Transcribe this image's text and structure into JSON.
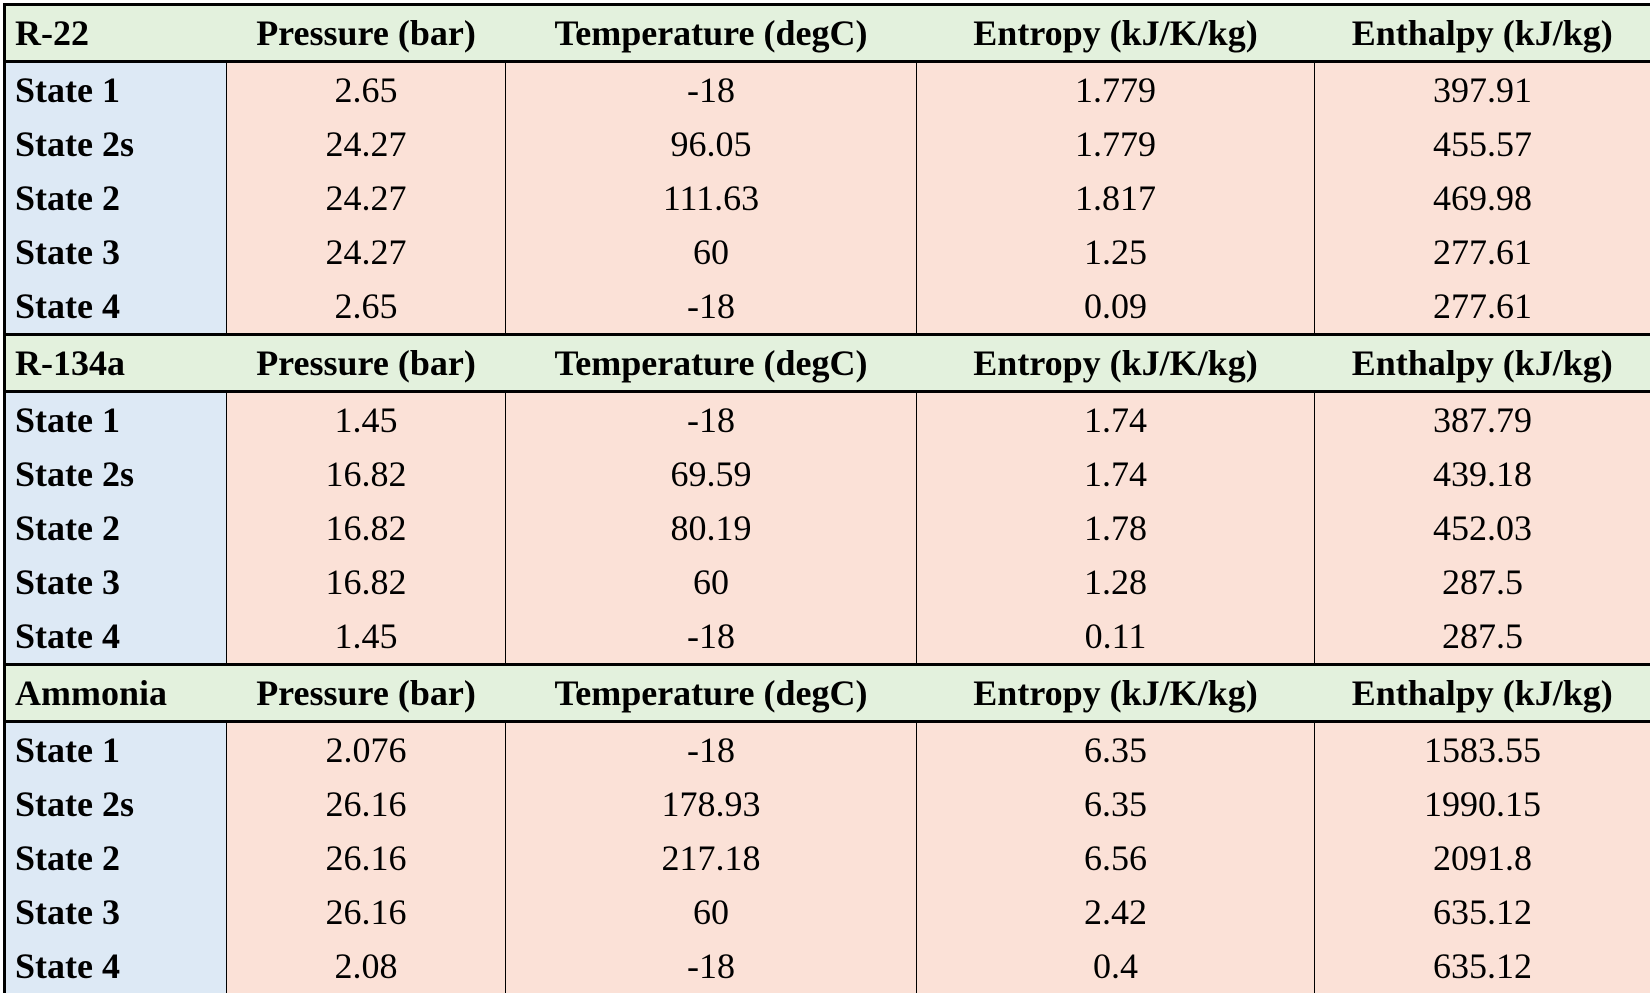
{
  "columns": [
    "Pressure (bar)",
    "Temperature (degC)",
    "Entropy (kJ/K/kg)",
    "Enthalpy (kJ/kg)"
  ],
  "sections": [
    {
      "name": "R-22",
      "rows": [
        {
          "state": "State 1",
          "values": [
            "2.65",
            "-18",
            "1.779",
            "397.91"
          ]
        },
        {
          "state": "State 2s",
          "values": [
            "24.27",
            "96.05",
            "1.779",
            "455.57"
          ]
        },
        {
          "state": "State 2",
          "values": [
            "24.27",
            "111.63",
            "1.817",
            "469.98"
          ]
        },
        {
          "state": "State 3",
          "values": [
            "24.27",
            "60",
            "1.25",
            "277.61"
          ]
        },
        {
          "state": "State 4",
          "values": [
            "2.65",
            "-18",
            "0.09",
            "277.61"
          ]
        }
      ]
    },
    {
      "name": "R-134a",
      "rows": [
        {
          "state": "State 1",
          "values": [
            "1.45",
            "-18",
            "1.74",
            "387.79"
          ]
        },
        {
          "state": "State 2s",
          "values": [
            "16.82",
            "69.59",
            "1.74",
            "439.18"
          ]
        },
        {
          "state": "State 2",
          "values": [
            "16.82",
            "80.19",
            "1.78",
            "452.03"
          ]
        },
        {
          "state": "State 3",
          "values": [
            "16.82",
            "60",
            "1.28",
            "287.5"
          ]
        },
        {
          "state": "State 4",
          "values": [
            "1.45",
            "-18",
            "0.11",
            "287.5"
          ]
        }
      ]
    },
    {
      "name": "Ammonia",
      "rows": [
        {
          "state": "State 1",
          "values": [
            "2.076",
            "-18",
            "6.35",
            "1583.55"
          ]
        },
        {
          "state": "State 2s",
          "values": [
            "26.16",
            "178.93",
            "6.35",
            "1990.15"
          ]
        },
        {
          "state": "State 2",
          "values": [
            "26.16",
            "217.18",
            "6.56",
            "2091.8"
          ]
        },
        {
          "state": "State 3",
          "values": [
            "26.16",
            "60",
            "2.42",
            "635.12"
          ]
        },
        {
          "state": "State 4",
          "values": [
            "2.08",
            "-18",
            "0.4",
            "635.12"
          ]
        }
      ]
    }
  ],
  "colors": {
    "header_fill": "#e3f1dd",
    "state_fill": "#dde9f5",
    "value_fill": "#fbe1d7"
  }
}
